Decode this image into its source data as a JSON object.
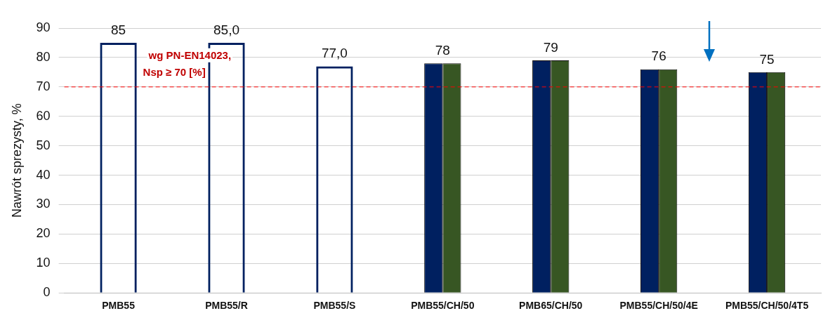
{
  "chart_data": {
    "type": "bar",
    "ylabel": "Nawrót sprezysty, %",
    "categories": [
      "PMB55",
      "PMB55/R",
      "PMB55/S",
      "PMB55/CH/50",
      "PMB65/CH/50",
      "PMB55/CH/50/4E",
      "PMB55/CH/50/4T5"
    ],
    "series": [
      {
        "color": "#002060",
        "values": [
          85,
          85,
          77,
          null,
          null,
          null,
          null
        ],
        "value_labels": [
          "85",
          "85,0",
          "77,0",
          null,
          null,
          null,
          null
        ]
      },
      {
        "color": "#002060",
        "values": [
          null,
          null,
          null,
          78,
          79,
          76,
          75
        ],
        "value_labels": [
          null,
          null,
          null,
          "78",
          "79",
          "76",
          "75"
        ]
      },
      {
        "color": "#375623",
        "values": [
          null,
          null,
          null,
          78,
          79,
          76,
          75
        ]
      }
    ],
    "ylim": [
      0,
      90
    ],
    "yticks": [
      0,
      10,
      20,
      30,
      40,
      50,
      60,
      70,
      80,
      90
    ],
    "grid": "y",
    "legend": false,
    "ref_lines": [
      {
        "axis": "y",
        "value": 70,
        "label": "wg PN-EN14023,\nNsp ≥ 70 [%]",
        "color": "#ff0000",
        "line_style": "dashed"
      }
    ]
  }
}
